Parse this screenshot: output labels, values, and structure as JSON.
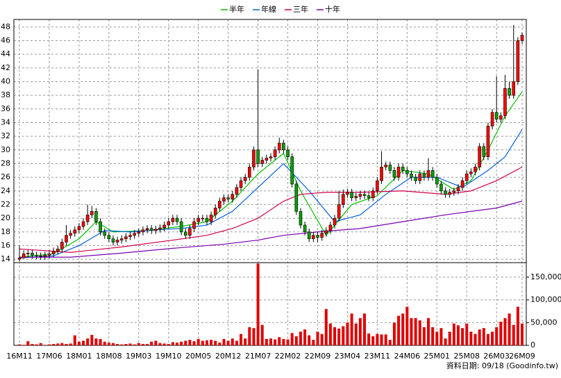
{
  "chart_data": {
    "type": "candlestick",
    "categories": [
      "16M11",
      null,
      null,
      null,
      null,
      null,
      null,
      "17M06",
      null,
      null,
      null,
      null,
      null,
      null,
      "18M01",
      null,
      null,
      null,
      null,
      null,
      null,
      "18M08",
      null,
      null,
      null,
      null,
      null,
      null,
      "19M03",
      null,
      null,
      null,
      null,
      null,
      null,
      "19M10",
      null,
      null,
      null,
      null,
      null,
      null,
      "20M05",
      null,
      null,
      null,
      null,
      null,
      null,
      "20M12",
      null,
      null,
      null,
      null,
      null,
      null,
      "21M07",
      null,
      null,
      null,
      null,
      null,
      null,
      "22M02",
      null,
      null,
      null,
      null,
      null,
      null,
      "22M09",
      null,
      null,
      null,
      null,
      null,
      null,
      "23M04",
      null,
      null,
      null,
      null,
      null,
      null,
      "23M11",
      null,
      null,
      null,
      null,
      null,
      null,
      "24M06",
      null,
      null,
      null,
      null,
      null,
      null,
      "25M01",
      null,
      null,
      null,
      null,
      null,
      null,
      "25M08",
      null,
      null,
      null,
      null,
      null,
      null,
      "26M03",
      null,
      null,
      null,
      null,
      null,
      "26M09"
    ],
    "open": [
      14.0,
      14.2,
      14.8,
      14.9,
      14.6,
      14.5,
      14.4,
      14.6,
      14.8,
      15.2,
      15.5,
      16.5,
      17.5,
      17.8,
      18.3,
      18.8,
      19.5,
      20.5,
      21,
      19.5,
      18,
      17.5,
      17,
      16.5,
      16.8,
      17,
      17.3,
      17.5,
      17.8,
      18,
      18.3,
      18.5,
      18.2,
      18.4,
      18.6,
      19,
      19.5,
      20,
      19.5,
      18,
      17.5,
      18.5,
      19.5,
      20,
      20,
      19.5,
      20.5,
      21.5,
      22.5,
      23,
      22.8,
      23.5,
      24.5,
      25.5,
      26,
      27.5,
      30,
      28,
      28.5,
      28.8,
      29,
      30,
      31,
      30,
      29,
      25,
      21,
      19,
      18,
      17,
      17.5,
      17.2,
      17.8,
      18.2,
      19,
      20,
      22,
      23.5,
      23.8,
      23,
      23.2,
      23.5,
      23.3,
      23,
      24,
      25.5,
      27.5,
      27.8,
      27,
      26,
      27.5,
      27,
      26.5,
      26,
      25.5,
      26.5,
      26,
      27,
      26,
      25,
      24,
      23.5,
      23.8,
      24,
      24.5,
      25.5,
      26.5,
      26.8,
      27.5,
      30.5,
      29,
      33.5,
      35.5,
      34.5,
      35,
      39,
      38,
      40,
      46
    ],
    "high": [
      16,
      15.3,
      15.4,
      15.4,
      15.1,
      15.0,
      15.1,
      15.3,
      15.7,
      16.0,
      17.0,
      19,
      18.3,
      18.8,
      19.3,
      20.0,
      22.0,
      21.8,
      21.5,
      20.0,
      18.5,
      18.0,
      17.5,
      17.3,
      17.5,
      17.8,
      18.0,
      18.3,
      18.5,
      18.8,
      19.0,
      19.0,
      18.9,
      19.1,
      19.5,
      20.0,
      20.5,
      20.5,
      20.0,
      18.5,
      19.0,
      20.0,
      20.5,
      20.5,
      20.5,
      21.0,
      22.0,
      23.0,
      23.5,
      23.5,
      24.0,
      25.0,
      26.0,
      26.5,
      28.0,
      30.5,
      41.8,
      29.0,
      29.3,
      29.5,
      30.5,
      31.8,
      31.5,
      30.5,
      29.5,
      25.5,
      21.5,
      19.5,
      18.5,
      18.0,
      18.0,
      18.3,
      18.7,
      19.5,
      20.5,
      24.0,
      24.2,
      24.3,
      24.3,
      23.7,
      24.0,
      24.0,
      23.8,
      24.5,
      26.0,
      29.8,
      28.3,
      28.3,
      27.5,
      28.0,
      28.0,
      27.5,
      27.0,
      26.5,
      27.0,
      27.0,
      28.8,
      27.5,
      26.5,
      25.5,
      24.5,
      24.3,
      24.5,
      25.0,
      26.0,
      27.0,
      27.3,
      28.0,
      31.0,
      31.0,
      34.0,
      36.0,
      40.8,
      35.5,
      41.0,
      40.0,
      48.3,
      46.5,
      47.2
    ],
    "low": [
      13.7,
      14.1,
      14.3,
      14.1,
      14.0,
      13.9,
      13.9,
      14.1,
      14.3,
      14.7,
      15.0,
      16.0,
      17.0,
      17.3,
      17.8,
      18.3,
      19.0,
      20.0,
      19.0,
      17.5,
      17.0,
      16.5,
      16.0,
      16.0,
      16.3,
      16.5,
      16.8,
      17.0,
      17.3,
      17.5,
      17.8,
      17.7,
      17.7,
      17.9,
      18.1,
      18.5,
      19.0,
      19.0,
      17.5,
      17.0,
      17.0,
      18.0,
      19.0,
      19.5,
      19.0,
      19.0,
      20.0,
      21.0,
      22.0,
      22.3,
      22.3,
      23.0,
      24.0,
      25.0,
      25.5,
      27.0,
      27.5,
      27.5,
      28.0,
      28.3,
      28.5,
      29.5,
      29.5,
      28.5,
      24.5,
      20.5,
      18.5,
      17.5,
      16.5,
      16.5,
      16.5,
      16.7,
      17.3,
      17.7,
      18.5,
      19.5,
      21.5,
      23.0,
      22.5,
      22.5,
      22.7,
      22.8,
      22.5,
      22.5,
      23.5,
      25.0,
      27.0,
      26.5,
      25.5,
      25.5,
      26.5,
      26.0,
      25.5,
      25.0,
      25.0,
      25.5,
      25.5,
      25.5,
      24.5,
      23.5,
      23.0,
      23.0,
      23.3,
      23.5,
      24.0,
      25.0,
      26.0,
      26.3,
      27.0,
      28.5,
      28.5,
      33.0,
      34.0,
      34.0,
      34.5,
      37.5,
      37.5,
      39.5,
      45.5
    ],
    "close": [
      14.2,
      14.8,
      14.9,
      14.6,
      14.5,
      14.4,
      14.6,
      14.8,
      15.2,
      15.5,
      16.5,
      17.5,
      17.8,
      18.3,
      18.8,
      19.5,
      20.5,
      21,
      19.5,
      18,
      17.5,
      17,
      16.5,
      16.8,
      17,
      17.3,
      17.5,
      17.8,
      18,
      18.3,
      18.5,
      18.2,
      18.4,
      18.6,
      19,
      19.5,
      20,
      19.5,
      18,
      17.5,
      18.5,
      19.5,
      20,
      20,
      19.5,
      20.5,
      21.5,
      22.5,
      23,
      22.8,
      23.5,
      24.5,
      25.5,
      26,
      27.5,
      30,
      28,
      28.5,
      28.8,
      29,
      30,
      31,
      30,
      29,
      25,
      21,
      19,
      18,
      17,
      17.5,
      17.2,
      17.8,
      18.2,
      19,
      20,
      22,
      23.5,
      23.8,
      23,
      23.2,
      23.5,
      23.3,
      23,
      24,
      25.5,
      27.5,
      27.8,
      27,
      26,
      27.5,
      27,
      26.5,
      26,
      25.5,
      26.5,
      26,
      27,
      26,
      25,
      24,
      23.5,
      23.8,
      24,
      24.5,
      25.5,
      26.5,
      26.8,
      27.5,
      30.5,
      29,
      33.5,
      35.5,
      34.5,
      35,
      39,
      38,
      40,
      46,
      46.8
    ],
    "up_color": "#ff0000",
    "down_color": "#00a000",
    "ylim": [
      13.5,
      49.1
    ],
    "yticks": [
      14,
      16,
      18,
      20,
      22,
      24,
      26,
      28,
      30,
      32,
      34,
      36,
      38,
      40,
      42,
      44,
      46,
      48
    ],
    "y2lim": [
      0,
      182000
    ],
    "y2ticks": [
      0,
      {
        "value": 50000,
        "label": "50,000"
      },
      {
        "value": 100000,
        "label": "100,000"
      },
      {
        "value": 150000,
        "label": "150,000"
      }
    ],
    "grid": true,
    "legend": "top",
    "lines": [
      {
        "name": "半年",
        "color": "#00c000",
        "x": [
          0,
          8,
          14,
          18,
          22,
          30,
          38,
          44,
          50,
          56,
          62,
          66,
          72,
          78,
          84,
          90,
          96,
          102,
          106,
          110,
          114,
          118
        ],
        "values": [
          14.3,
          14.8,
          17,
          19.5,
          18,
          18.2,
          18.8,
          19.5,
          22.5,
          26.5,
          29.5,
          24,
          17.5,
          22,
          23.3,
          27,
          26.5,
          24.2,
          25.5,
          30,
          35,
          38.5
        ]
      },
      {
        "name": "年線",
        "color": "#0060e0",
        "x": [
          0,
          8,
          14,
          20,
          26,
          32,
          38,
          44,
          50,
          56,
          62,
          68,
          74,
          80,
          86,
          92,
          98,
          104,
          110,
          114,
          118
        ],
        "values": [
          14.2,
          14.5,
          16,
          18.2,
          18,
          18.3,
          18.5,
          19,
          21,
          24.5,
          28,
          24,
          19.5,
          20.5,
          23.5,
          26,
          26,
          24.5,
          27,
          29,
          33
        ]
      },
      {
        "name": "三年",
        "color": "#d0004a",
        "x": [
          0,
          12,
          24,
          36,
          44,
          50,
          56,
          62,
          66,
          72,
          80,
          90,
          100,
          106,
          112,
          118
        ],
        "values": [
          15.5,
          15,
          15.8,
          16.8,
          17.5,
          18.5,
          20,
          22.5,
          23.5,
          23.8,
          23.8,
          24,
          23.5,
          24,
          25.5,
          27.5
        ]
      },
      {
        "name": "十年",
        "color": "#7a00b0",
        "x": [
          0,
          12,
          24,
          36,
          48,
          56,
          62,
          70,
          80,
          90,
          100,
          106,
          112,
          118
        ],
        "values": [
          14.3,
          14.3,
          14.9,
          15.6,
          16.2,
          16.8,
          17.5,
          18,
          18.5,
          19.5,
          20.5,
          21,
          21.5,
          22.5
        ]
      }
    ],
    "volume": {
      "color": "#e00000",
      "axis": "y2",
      "values": [
        2000,
        1000,
        9000,
        3000,
        2000,
        5000,
        1000,
        2000,
        3000,
        4000,
        5000,
        3000,
        4000,
        22000,
        8000,
        10000,
        15000,
        23000,
        15000,
        14000,
        8000,
        6000,
        5000,
        3000,
        2000,
        3000,
        4000,
        2000,
        5000,
        3000,
        3000,
        8000,
        10000,
        5000,
        4000,
        3000,
        7000,
        6000,
        8000,
        10000,
        12000,
        9000,
        14000,
        10000,
        11000,
        12000,
        10000,
        6000,
        14000,
        10000,
        15000,
        10000,
        25000,
        15000,
        40000,
        38000,
        180000,
        45000,
        14000,
        15000,
        13000,
        18000,
        14000,
        13000,
        27000,
        20000,
        30000,
        35000,
        22000,
        12000,
        30000,
        25000,
        80000,
        48000,
        40000,
        37000,
        42000,
        50000,
        70000,
        48000,
        60000,
        70000,
        26000,
        20000,
        25000,
        24000,
        24000,
        12000,
        50000,
        65000,
        70000,
        85000,
        60000,
        60000,
        55000,
        40000,
        60000,
        40000,
        30000,
        38000,
        15000,
        30000,
        48000,
        44000,
        38000,
        48000,
        30000,
        25000,
        35000,
        38000,
        25000,
        30000,
        40000,
        52000,
        60000,
        70000,
        45000,
        85000,
        48000
      ]
    },
    "source": "資料日期: 09/18 (Goodinfo.tw)"
  }
}
